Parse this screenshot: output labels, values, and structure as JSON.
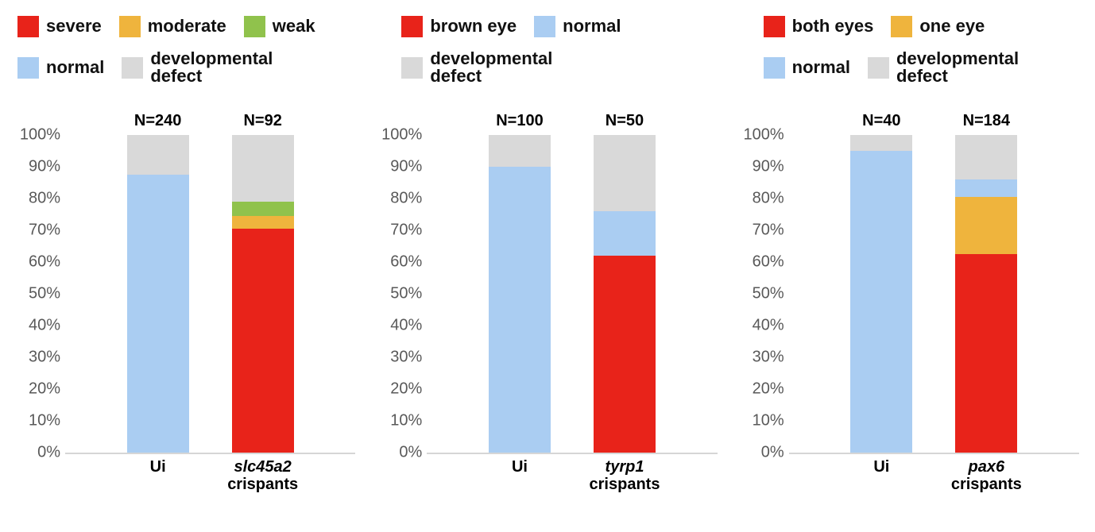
{
  "colors": {
    "severe_red": "#e8231a",
    "moderate_yellow": "#efb43d",
    "weak_green": "#90c24c",
    "normal_blue": "#aacdf2",
    "defect_gray": "#d9d9d9",
    "axis_tick_text": "#595959",
    "baseline_gray": "#d6d6d6"
  },
  "y_axis_ticks": [
    "100%",
    "90%",
    "80%",
    "70%",
    "60%",
    "50%",
    "40%",
    "30%",
    "20%",
    "10%",
    "0%"
  ],
  "chart_data": [
    {
      "type": "bar",
      "stacked": true,
      "ylim": [
        0,
        100
      ],
      "grid": false,
      "legend_position": "top",
      "legend_rows": [
        [
          {
            "label": "severe",
            "color_key": "severe_red"
          },
          {
            "label": "moderate",
            "color_key": "moderate_yellow"
          },
          {
            "label": "weak",
            "color_key": "weak_green"
          }
        ],
        [
          {
            "label": "normal",
            "color_key": "normal_blue"
          },
          {
            "label": "developmental defect",
            "color_key": "defect_gray",
            "wrap": true
          }
        ]
      ],
      "bars": [
        {
          "n_label": "N=240",
          "category_lines": [
            {
              "text": "Ui",
              "italic": false
            }
          ],
          "segments": [
            {
              "name": "normal",
              "value": 87.5,
              "color_key": "normal_blue"
            },
            {
              "name": "developmental defect",
              "value": 12.5,
              "color_key": "defect_gray"
            }
          ]
        },
        {
          "n_label": "N=92",
          "category_lines": [
            {
              "text": "slc45a2",
              "italic": true
            },
            {
              "text": "crispants",
              "italic": false
            }
          ],
          "segments": [
            {
              "name": "severe",
              "value": 70.5,
              "color_key": "severe_red"
            },
            {
              "name": "moderate",
              "value": 4,
              "color_key": "moderate_yellow"
            },
            {
              "name": "weak",
              "value": 4.5,
              "color_key": "weak_green"
            },
            {
              "name": "developmental defect",
              "value": 21,
              "color_key": "defect_gray"
            }
          ]
        }
      ]
    },
    {
      "type": "bar",
      "stacked": true,
      "ylim": [
        0,
        100
      ],
      "grid": false,
      "legend_position": "top",
      "legend_rows": [
        [
          {
            "label": "brown eye",
            "color_key": "severe_red"
          },
          {
            "label": "normal",
            "color_key": "normal_blue"
          }
        ],
        [
          {
            "label": "developmental defect",
            "color_key": "defect_gray",
            "wrap": true
          }
        ]
      ],
      "bars": [
        {
          "n_label": "N=100",
          "category_lines": [
            {
              "text": "Ui",
              "italic": false
            }
          ],
          "segments": [
            {
              "name": "normal",
              "value": 90,
              "color_key": "normal_blue"
            },
            {
              "name": "developmental defect",
              "value": 10,
              "color_key": "defect_gray"
            }
          ]
        },
        {
          "n_label": "N=50",
          "category_lines": [
            {
              "text": "tyrp1",
              "italic": true
            },
            {
              "text": "crispants",
              "italic": false
            }
          ],
          "segments": [
            {
              "name": "brown eye",
              "value": 62,
              "color_key": "severe_red"
            },
            {
              "name": "normal",
              "value": 14,
              "color_key": "normal_blue"
            },
            {
              "name": "developmental defect",
              "value": 24,
              "color_key": "defect_gray"
            }
          ]
        }
      ]
    },
    {
      "type": "bar",
      "stacked": true,
      "ylim": [
        0,
        100
      ],
      "grid": false,
      "legend_position": "top",
      "legend_rows": [
        [
          {
            "label": "both eyes",
            "color_key": "severe_red"
          },
          {
            "label": "one eye",
            "color_key": "moderate_yellow"
          }
        ],
        [
          {
            "label": "normal",
            "color_key": "normal_blue"
          },
          {
            "label": "developmental defect",
            "color_key": "defect_gray",
            "wrap": true
          }
        ]
      ],
      "bars": [
        {
          "n_label": "N=40",
          "category_lines": [
            {
              "text": "Ui",
              "italic": false
            }
          ],
          "segments": [
            {
              "name": "normal",
              "value": 95,
              "color_key": "normal_blue"
            },
            {
              "name": "developmental defect",
              "value": 5,
              "color_key": "defect_gray"
            }
          ]
        },
        {
          "n_label": "N=184",
          "category_lines": [
            {
              "text": "pax6",
              "italic": true
            },
            {
              "text": "crispants",
              "italic": false
            }
          ],
          "segments": [
            {
              "name": "both eyes",
              "value": 62.5,
              "color_key": "severe_red"
            },
            {
              "name": "one eye",
              "value": 18,
              "color_key": "moderate_yellow"
            },
            {
              "name": "normal",
              "value": 5.5,
              "color_key": "normal_blue"
            },
            {
              "name": "developmental defect",
              "value": 14,
              "color_key": "defect_gray"
            }
          ]
        }
      ]
    }
  ]
}
